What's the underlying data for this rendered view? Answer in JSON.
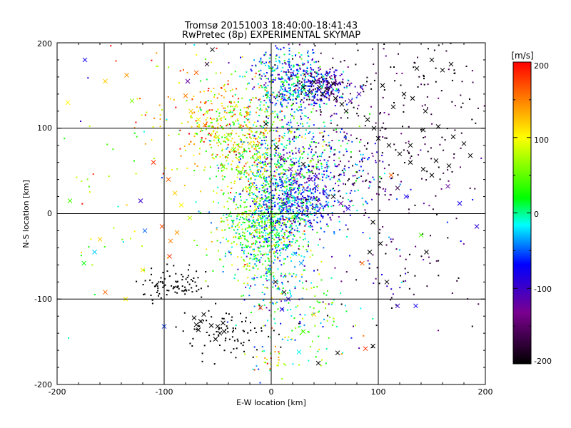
{
  "chart_data": {
    "type": "scatter",
    "title": "Tromsø 20151003 18:40:00-18:41:43",
    "subtitle": "RwPretec (8p) EXPERIMENTAL SKYMAP",
    "xlabel": "E-W location [km]",
    "ylabel": "N-S location [km]",
    "xlim": [
      -200,
      200
    ],
    "ylim": [
      -200,
      200
    ],
    "xticks": [
      "-200",
      "-100",
      "0",
      "100",
      "200"
    ],
    "yticks": [
      "-200",
      "-100",
      "0",
      "100",
      "200"
    ],
    "grid": true,
    "colorbar": {
      "label": "[m/s]",
      "range": [
        -200,
        200
      ],
      "ticks": [
        "200",
        "100",
        "0",
        "-100",
        "-200"
      ],
      "colors": [
        "#000000",
        "#7a0090",
        "#0000ff",
        "#00ffff",
        "#00ff00",
        "#ffff00",
        "#ff0000"
      ]
    },
    "series": [
      {
        "marker": "x",
        "points": [
          [
            -155,
            155,
            120
          ],
          [
            -135,
            162,
            140
          ],
          [
            -130,
            132,
            60
          ],
          [
            -174,
            180,
            -80
          ],
          [
            -190,
            130,
            100
          ],
          [
            -188,
            15,
            40
          ],
          [
            -160,
            -30,
            120
          ],
          [
            -165,
            -45,
            -30
          ],
          [
            -175,
            -58,
            20
          ],
          [
            -155,
            -92,
            160
          ],
          [
            -122,
            15,
            -100
          ],
          [
            -118,
            -20,
            -50
          ],
          [
            -95,
            -50,
            180
          ],
          [
            -100,
            -132,
            -60
          ],
          [
            -72,
            -122,
            -200
          ],
          [
            -70,
            -130,
            -200
          ],
          [
            -66,
            -126,
            -200
          ],
          [
            -68,
            -136,
            -200
          ],
          [
            -50,
            -132,
            -200
          ],
          [
            -48,
            -140,
            -200
          ],
          [
            -45,
            -128,
            -200
          ],
          [
            -44,
            -138,
            -200
          ],
          [
            -63,
            -118,
            -200
          ],
          [
            -56,
            -131,
            -200
          ],
          [
            -52,
            -147,
            -200
          ],
          [
            -78,
            155,
            -120
          ],
          [
            -70,
            165,
            160
          ],
          [
            -60,
            175,
            -180
          ],
          [
            -55,
            192,
            -200
          ],
          [
            -80,
            138,
            150
          ],
          [
            -75,
            120,
            120
          ],
          [
            -68,
            110,
            100
          ],
          [
            -62,
            104,
            140
          ],
          [
            -50,
            90,
            80
          ],
          [
            -40,
            92,
            60
          ],
          [
            -35,
            75,
            40
          ],
          [
            -28,
            68,
            0
          ],
          [
            -20,
            82,
            110
          ],
          [
            -12,
            66,
            90
          ],
          [
            -5,
            105,
            -200
          ],
          [
            5,
            78,
            -200
          ],
          [
            10,
            64,
            -150
          ],
          [
            18,
            52,
            -120
          ],
          [
            25,
            46,
            -130
          ],
          [
            30,
            58,
            -200
          ],
          [
            37,
            40,
            -110
          ],
          [
            42,
            32,
            -100
          ],
          [
            50,
            26,
            -60
          ],
          [
            58,
            20,
            -200
          ],
          [
            65,
            12,
            -120
          ],
          [
            72,
            6,
            -80
          ],
          [
            -45,
            55,
            40
          ],
          [
            -30,
            48,
            60
          ],
          [
            -22,
            30,
            100
          ],
          [
            -15,
            15,
            80
          ],
          [
            -8,
            0,
            50
          ],
          [
            0,
            -12,
            20
          ],
          [
            6,
            -25,
            10
          ],
          [
            14,
            -38,
            -10
          ],
          [
            22,
            -47,
            -30
          ],
          [
            28,
            -58,
            -40
          ],
          [
            -2,
            -68,
            20
          ],
          [
            4,
            -80,
            -200
          ],
          [
            12,
            -92,
            -200
          ],
          [
            16,
            -100,
            -90
          ],
          [
            -10,
            -110,
            160
          ],
          [
            30,
            148,
            -200
          ],
          [
            36,
            142,
            -200
          ],
          [
            40,
            154,
            -200
          ],
          [
            45,
            148,
            -200
          ],
          [
            48,
            140,
            -200
          ],
          [
            52,
            146,
            -200
          ],
          [
            58,
            152,
            -200
          ],
          [
            60,
            135,
            -200
          ],
          [
            66,
            128,
            -200
          ],
          [
            70,
            120,
            -200
          ],
          [
            74,
            132,
            -120
          ],
          [
            82,
            140,
            -110
          ],
          [
            90,
            110,
            -200
          ],
          [
            96,
            100,
            -200
          ],
          [
            100,
            88,
            -200
          ],
          [
            110,
            80,
            -200
          ],
          [
            120,
            70,
            -200
          ],
          [
            130,
            60,
            -200
          ],
          [
            142,
            52,
            -200
          ],
          [
            150,
            45,
            -200
          ],
          [
            165,
            32,
            -120
          ],
          [
            176,
            12,
            -80
          ],
          [
            112,
            45,
            160
          ],
          [
            118,
            30,
            -170
          ],
          [
            126,
            20,
            -80
          ],
          [
            95,
            -10,
            -200
          ],
          [
            102,
            -35,
            -200
          ],
          [
            92,
            -45,
            -200
          ],
          [
            85,
            -58,
            160
          ],
          [
            108,
            -80,
            -200
          ],
          [
            118,
            -108,
            -100
          ],
          [
            135,
            -108,
            -80
          ],
          [
            140,
            -25,
            40
          ],
          [
            145,
            -45,
            -200
          ],
          [
            95,
            -155,
            -200
          ],
          [
            88,
            -158,
            180
          ],
          [
            62,
            -163,
            -200
          ],
          [
            44,
            -175,
            -200
          ],
          [
            40,
            -118,
            120
          ],
          [
            30,
            -138,
            40
          ],
          [
            26,
            -162,
            -20
          ],
          [
            10,
            -112,
            -90
          ],
          [
            192,
            -15,
            -90
          ],
          [
            168,
            175,
            -200
          ],
          [
            160,
            168,
            -200
          ],
          [
            150,
            180,
            -200
          ],
          [
            136,
            170,
            -200
          ],
          [
            124,
            140,
            -200
          ],
          [
            114,
            125,
            -200
          ],
          [
            104,
            150,
            -200
          ],
          [
            132,
            135,
            -200
          ],
          [
            144,
            120,
            -200
          ],
          [
            156,
            102,
            -200
          ],
          [
            170,
            90,
            -200
          ],
          [
            180,
            82,
            -200
          ],
          [
            186,
            68,
            -200
          ],
          [
            166,
            56,
            -200
          ],
          [
            154,
            62,
            -200
          ],
          [
            130,
            80,
            -200
          ],
          [
            142,
            98,
            -200
          ],
          [
            -110,
            60,
            180
          ],
          [
            -96,
            40,
            160
          ],
          [
            -90,
            24,
            120
          ],
          [
            -84,
            10,
            100
          ],
          [
            -76,
            -5,
            80
          ],
          [
            -88,
            -22,
            140
          ],
          [
            -94,
            -32,
            150
          ],
          [
            -102,
            -15,
            170
          ],
          [
            -120,
            -66,
            110
          ],
          [
            -136,
            -100,
            100
          ]
        ]
      },
      {
        "marker": "dot",
        "clusters": [
          {
            "cx": 0,
            "cy": -5,
            "sx": 18,
            "sy": 48,
            "count": 900,
            "v": -10,
            "dv": 55
          },
          {
            "cx": 25,
            "cy": 15,
            "sx": 18,
            "sy": 20,
            "count": 420,
            "v": -70,
            "dv": 40
          },
          {
            "cx": 15,
            "cy": 155,
            "sx": 18,
            "sy": 18,
            "count": 380,
            "v": -40,
            "dv": 50
          },
          {
            "cx": 45,
            "cy": 150,
            "sx": 16,
            "sy": 12,
            "count": 280,
            "v": -110,
            "dv": 50
          },
          {
            "cx": -20,
            "cy": 70,
            "sx": 22,
            "sy": 40,
            "count": 420,
            "v": 80,
            "dv": 60
          },
          {
            "cx": -45,
            "cy": 105,
            "sx": 18,
            "sy": 22,
            "count": 200,
            "v": 110,
            "dv": 60
          },
          {
            "cx": -25,
            "cy": -30,
            "sx": 20,
            "sy": 20,
            "count": 180,
            "v": 60,
            "dv": 50
          },
          {
            "cx": 35,
            "cy": 75,
            "sx": 28,
            "sy": 35,
            "count": 260,
            "v": -40,
            "dv": 70
          },
          {
            "cx": 60,
            "cy": 40,
            "sx": 25,
            "sy": 28,
            "count": 180,
            "v": -100,
            "dv": 60
          },
          {
            "cx": 120,
            "cy": 120,
            "sx": 55,
            "sy": 60,
            "count": 260,
            "v": -180,
            "dv": 30
          },
          {
            "cx": -90,
            "cy": -85,
            "sx": 15,
            "sy": 10,
            "count": 90,
            "v": -200,
            "dv": 0
          },
          {
            "cx": -40,
            "cy": -140,
            "sx": 18,
            "sy": 14,
            "count": 80,
            "v": -200,
            "dv": 0
          },
          {
            "cx": 30,
            "cy": -120,
            "sx": 25,
            "sy": 35,
            "count": 120,
            "v": 20,
            "dv": 60
          },
          {
            "cx": 110,
            "cy": -60,
            "sx": 40,
            "sy": 40,
            "count": 100,
            "v": -150,
            "dv": 50
          },
          {
            "cx": -80,
            "cy": 120,
            "sx": 40,
            "sy": 40,
            "count": 90,
            "v": 120,
            "dv": 60
          },
          {
            "cx": -150,
            "cy": 20,
            "sx": 30,
            "sy": 60,
            "count": 40,
            "v": 50,
            "dv": 60
          },
          {
            "cx": 0,
            "cy": -175,
            "sx": 10,
            "sy": 10,
            "count": 30,
            "v": 80,
            "dv": 80
          }
        ]
      }
    ]
  }
}
